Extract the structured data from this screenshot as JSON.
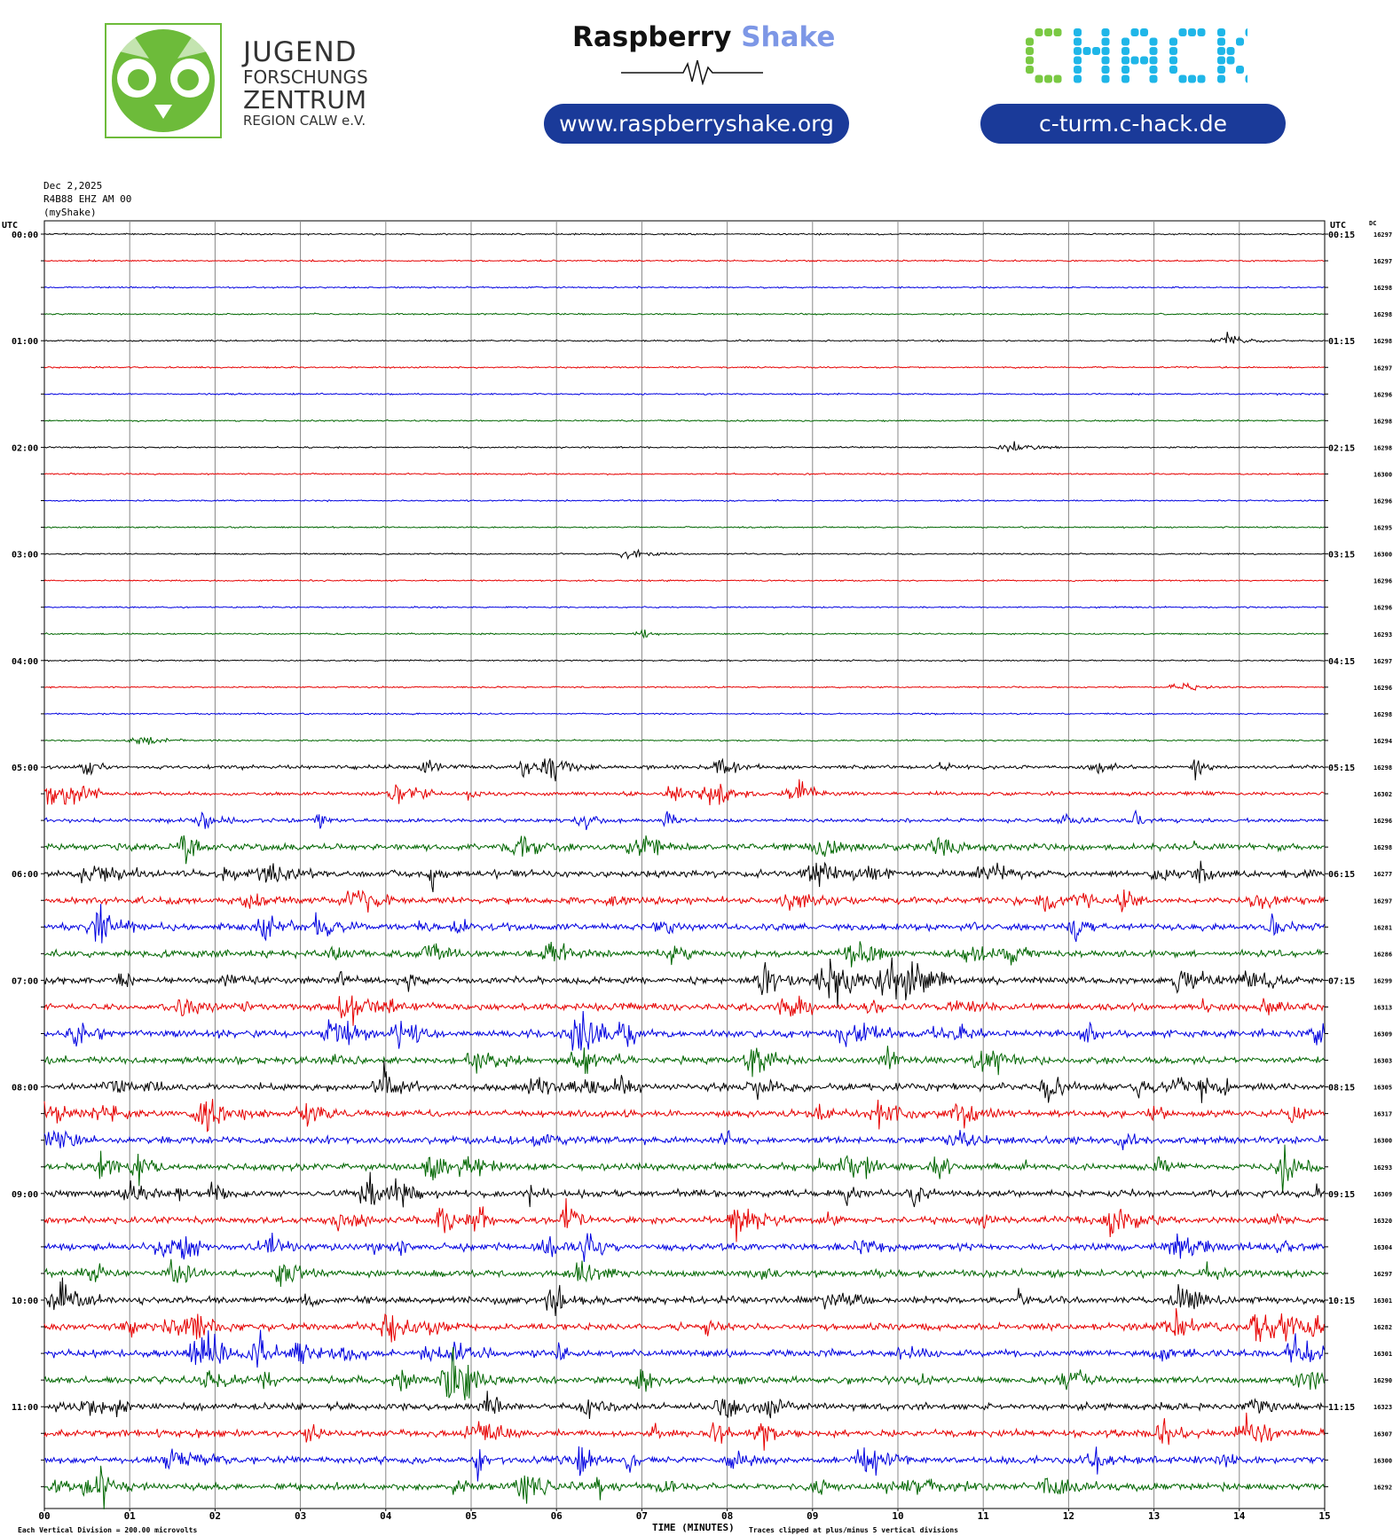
{
  "header": {
    "jfz": {
      "line1": "JUGEND",
      "line2": "FORSCHUNGS",
      "line3": "ZENTRUM",
      "line4": "REGION CALW e.V."
    },
    "rs": {
      "title_a": "Raspberry",
      "title_b": "Shake",
      "url": "www.raspberryshake.org"
    },
    "chack": {
      "logo": "CHACK",
      "url": "c-turm.c-hack.de"
    }
  },
  "meta": {
    "date": "Dec 2,2025",
    "station": "R4B88 EHZ AM 00",
    "network": "(myShake)"
  },
  "colors": {
    "black": "#000000",
    "red": "#e60000",
    "blue": "#0000e0",
    "green": "#006600",
    "jfz_green": "#6dbb3a",
    "chack_green": "#7ac943",
    "chack_cyan": "#1fb6e8",
    "pill_blue": "#1a3a99"
  },
  "chart_data": {
    "type": "helicorder",
    "left_axis_title": "UTC",
    "right_axis_title": "UTC",
    "dc_title": "DC",
    "xlabel": "TIME (MINUTES)",
    "x_ticks": [
      "00",
      "01",
      "02",
      "03",
      "04",
      "05",
      "06",
      "07",
      "08",
      "09",
      "10",
      "11",
      "12",
      "13",
      "14",
      "15"
    ],
    "xlim": [
      0,
      15
    ],
    "left_hour_labels": [
      "00:00",
      "01:00",
      "02:00",
      "03:00",
      "04:00",
      "05:00",
      "06:00",
      "07:00",
      "08:00",
      "09:00",
      "10:00",
      "11:00"
    ],
    "right_hour_labels": [
      "00:15",
      "01:15",
      "02:15",
      "03:15",
      "04:15",
      "05:15",
      "06:15",
      "07:15",
      "08:15",
      "09:15",
      "10:15",
      "11:15"
    ],
    "trace_colors": [
      "#000000",
      "#e60000",
      "#0000e0",
      "#006600"
    ],
    "dc_values": [
      "16297",
      "16297",
      "16298",
      "16298",
      "16298",
      "16297",
      "16296",
      "16298",
      "16298",
      "16300",
      "16296",
      "16295",
      "16300",
      "16296",
      "16296",
      "16293",
      "16297",
      "16296",
      "16298",
      "16294",
      "16298",
      "16302",
      "16296",
      "16298",
      "16277",
      "16297",
      "16281",
      "16286",
      "16299",
      "16313",
      "16309",
      "16303",
      "16305",
      "16317",
      "16300",
      "16293",
      "16309",
      "16320",
      "16304",
      "16297",
      "16301",
      "16282",
      "16301",
      "16290",
      "16323",
      "16307",
      "16300",
      "16292"
    ],
    "footer_left": "Each Vertical Division =  200.00 microvolts",
    "footer_right": "Traces clipped at plus/minus 5 vertical divisions"
  }
}
